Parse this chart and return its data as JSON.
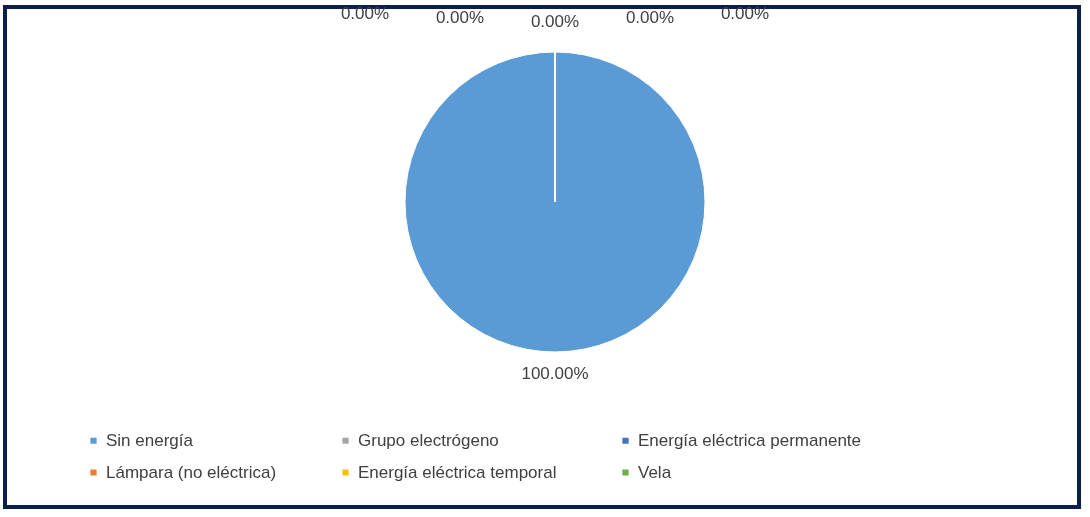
{
  "chart_data": {
    "type": "pie",
    "categories": [
      "Sin energía",
      "Lámpara (no eléctrica)",
      "Grupo electrógeno",
      "Energía eléctrica temporal",
      "Energía eléctrica permanente",
      "Vela"
    ],
    "values": [
      100,
      0,
      0,
      0,
      0,
      0
    ],
    "colors": [
      "#5b9bd5",
      "#ed7d31",
      "#a5a5a5",
      "#ffc000",
      "#4472c4",
      "#70ad47"
    ],
    "value_labels": [
      "100.00%",
      "0.00%",
      "0.00%",
      "0.00%",
      "0.00%",
      "0.00%"
    ],
    "legend": "bottom"
  }
}
